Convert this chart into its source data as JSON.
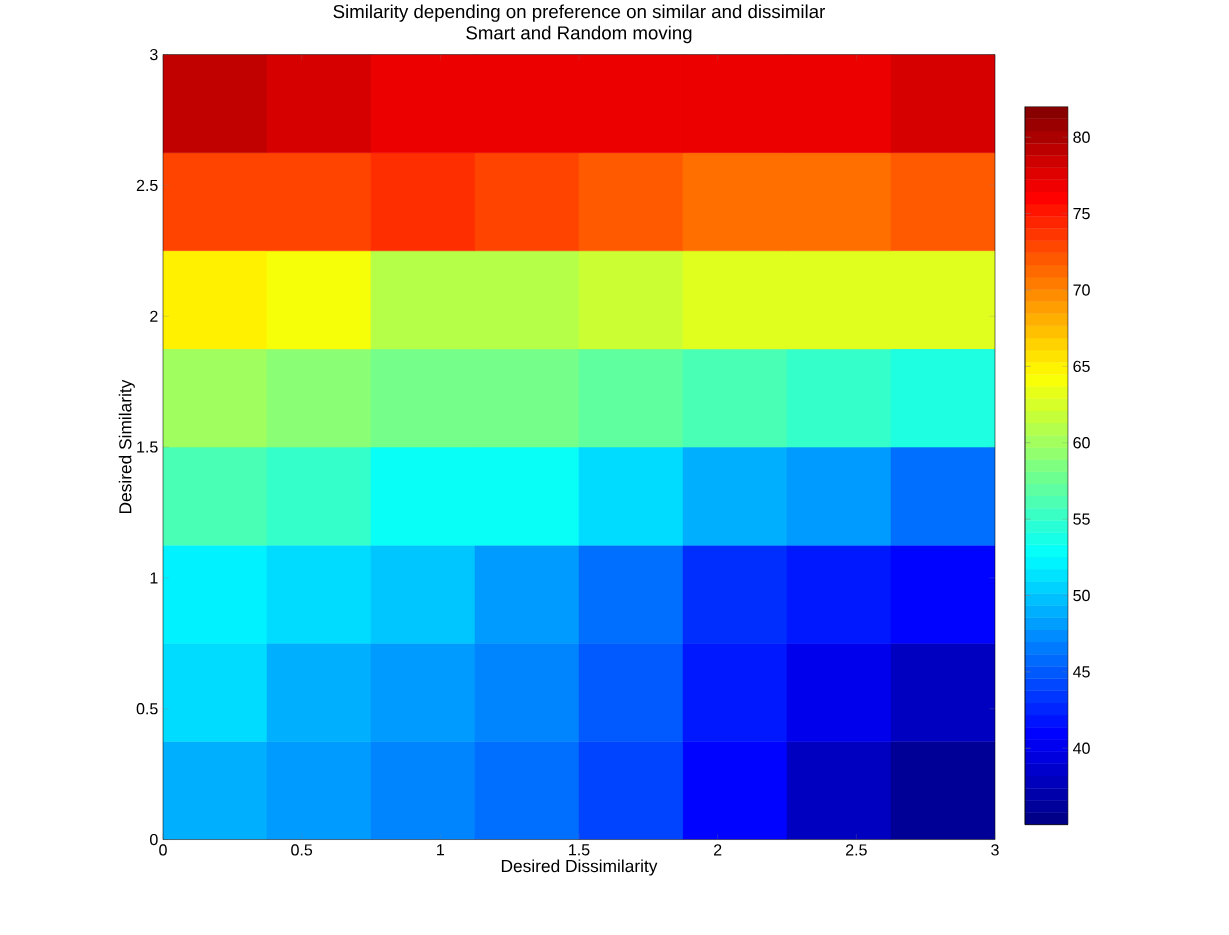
{
  "chart_data": {
    "type": "heatmap",
    "title": "Similarity depending on preference on similar and dissimilar",
    "subtitle": "Smart and Random moving",
    "xlabel": "Desired Dissimilarity",
    "ylabel": "Desired Similarity",
    "xlim": [
      0,
      3
    ],
    "ylim": [
      0,
      3
    ],
    "xticks": [
      0,
      0.5,
      1,
      1.5,
      2,
      2.5,
      3
    ],
    "yticks": [
      0,
      0.5,
      1,
      1.5,
      2,
      2.5,
      3
    ],
    "cells": [
      [
        79,
        78,
        77,
        77,
        77,
        77,
        77,
        78
      ],
      [
        73,
        73,
        74,
        73,
        72,
        71,
        71,
        72
      ],
      [
        65,
        64,
        61,
        61,
        62,
        63,
        63,
        63
      ],
      [
        60,
        59,
        58,
        58,
        57,
        56,
        55,
        54
      ],
      [
        56,
        55,
        53,
        53,
        51,
        49,
        48,
        46
      ],
      [
        52,
        51,
        50,
        48,
        46,
        43,
        42,
        41
      ],
      [
        51,
        49,
        48,
        47,
        45,
        42,
        40,
        38
      ],
      [
        49,
        48,
        47,
        46,
        44,
        41,
        38,
        36
      ]
    ],
    "clim": [
      35,
      82
    ],
    "cticks": [
      40,
      45,
      50,
      55,
      60,
      65,
      70,
      75,
      80
    ]
  }
}
